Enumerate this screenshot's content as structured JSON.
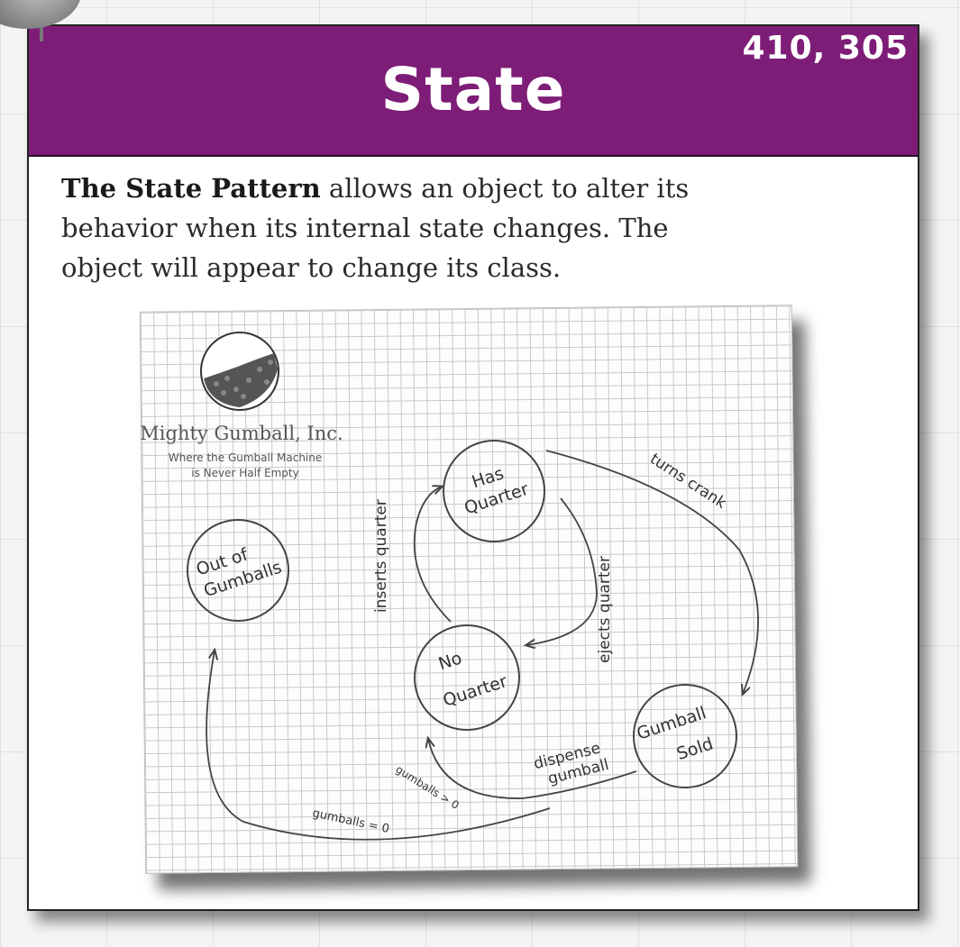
{
  "header": {
    "title": "State",
    "page_refs": "410, 305"
  },
  "definition": {
    "term": "The State Pattern",
    "text": " allows an object to alter its behavior when its internal state changes.  The object will appear to change its class."
  },
  "logo": {
    "company": "Mighty Gumball, Inc.",
    "tagline_line1": "Where the Gumball Machine",
    "tagline_line2": "is Never Half Empty"
  },
  "diagram": {
    "states": [
      {
        "id": "out-of-gumballs",
        "line1": "Out of",
        "line2": "Gumballs"
      },
      {
        "id": "has-quarter",
        "line1": "Has",
        "line2": "Quarter"
      },
      {
        "id": "no-quarter",
        "line1": "No",
        "line2": "Quarter"
      },
      {
        "id": "gumball-sold",
        "line1": "Gumball",
        "line2": "Sold"
      }
    ],
    "transitions": [
      {
        "id": "inserts-quarter",
        "label": "inserts quarter"
      },
      {
        "id": "ejects-quarter",
        "label": "ejects quarter"
      },
      {
        "id": "turns-crank",
        "label": "turns crank"
      },
      {
        "id": "dispense-gumball",
        "line1": "dispense",
        "line2": "gumball"
      },
      {
        "id": "gumballs-gt-0",
        "label": "gumballs > 0"
      },
      {
        "id": "gumballs-eq-0",
        "label": "gumballs = 0"
      }
    ]
  },
  "colors": {
    "banner": "#7e1d77",
    "ink": "#333333"
  }
}
